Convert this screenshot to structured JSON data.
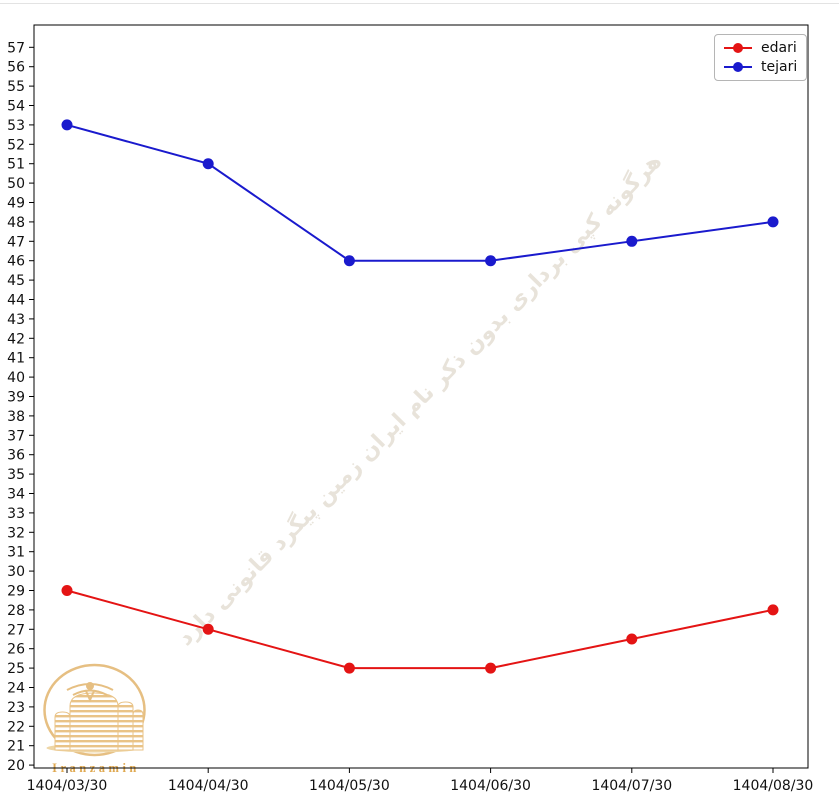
{
  "chart_data": {
    "type": "line",
    "title": "",
    "xlabel": "",
    "ylabel": "",
    "grid": false,
    "legend_position": "upper right",
    "categories": [
      "1404/03/30",
      "1404/04/30",
      "1404/05/30",
      "1404/06/30",
      "1404/07/30",
      "1404/08/30"
    ],
    "series": [
      {
        "name": "edari",
        "color": "#e41414",
        "values": [
          29,
          27,
          25,
          25,
          26.5,
          28
        ]
      },
      {
        "name": "tejari",
        "color": "#1a1acd",
        "values": [
          53,
          51,
          46,
          46,
          47,
          48
        ]
      }
    ],
    "yticks": [
      20,
      21,
      22,
      23,
      24,
      25,
      26,
      27,
      28,
      29,
      30,
      31,
      32,
      33,
      34,
      35,
      36,
      37,
      38,
      39,
      40,
      41,
      42,
      43,
      44,
      45,
      46,
      47,
      48,
      49,
      50,
      51,
      52,
      53,
      54,
      55,
      56,
      57
    ],
    "ylim": [
      19.85,
      58.15
    ]
  },
  "watermark": {
    "text": "هرگونه کپی برداری بدون ذکر نام ایران زمین پیگرد قانونی دارد",
    "color": "#e8e3da",
    "rotation_deg": -45.5
  },
  "logo": {
    "text": "Iranzamin",
    "gold": "#e6bf82",
    "gold_light": "#eed6a6",
    "text_color": "#dfa952"
  },
  "axis": {
    "spine_color": "#000000",
    "tick_label_color": "#111111"
  }
}
